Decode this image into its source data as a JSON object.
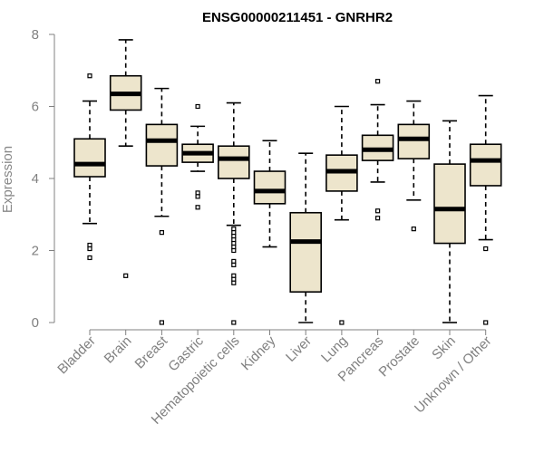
{
  "chart_data": {
    "type": "boxplot",
    "title": "ENSG00000211451 - GNRHR2",
    "ylabel": "Expression",
    "xlabel": "",
    "ylim": [
      0,
      8
    ],
    "yticks": [
      0,
      2,
      4,
      6,
      8
    ],
    "grid": false,
    "box_color": "#ede5cc",
    "categories": [
      "Bladder",
      "Brain",
      "Breast",
      "Gastric",
      "Hematopoietic cells",
      "Kidney",
      "Liver",
      "Lung",
      "Pancreas",
      "Prostate",
      "Skin",
      "Unknown / Other"
    ],
    "boxes": [
      {
        "category": "Bladder",
        "whisker_low": 2.75,
        "q1": 4.05,
        "median": 4.4,
        "q3": 5.1,
        "whisker_high": 6.15,
        "outliers": [
          6.85,
          2.15,
          2.05,
          1.8
        ]
      },
      {
        "category": "Brain",
        "whisker_low": 4.9,
        "q1": 5.9,
        "median": 6.35,
        "q3": 6.85,
        "whisker_high": 7.85,
        "outliers": [
          1.3
        ]
      },
      {
        "category": "Breast",
        "whisker_low": 2.95,
        "q1": 4.35,
        "median": 5.05,
        "q3": 5.5,
        "whisker_high": 6.5,
        "outliers": [
          2.5,
          0.0
        ]
      },
      {
        "category": "Gastric",
        "whisker_low": 4.2,
        "q1": 4.45,
        "median": 4.7,
        "q3": 4.95,
        "whisker_high": 5.45,
        "outliers": [
          6.0,
          3.6,
          3.5,
          3.2
        ]
      },
      {
        "category": "Hematopoietic cells",
        "whisker_low": 2.7,
        "q1": 4.0,
        "median": 4.55,
        "q3": 4.9,
        "whisker_high": 6.1,
        "outliers": [
          2.6,
          2.5,
          2.4,
          2.3,
          2.2,
          2.1,
          2.0,
          1.7,
          1.6,
          1.3,
          1.2,
          1.1,
          0.0
        ]
      },
      {
        "category": "Kidney",
        "whisker_low": 2.1,
        "q1": 3.3,
        "median": 3.65,
        "q3": 4.2,
        "whisker_high": 5.05,
        "outliers": []
      },
      {
        "category": "Liver",
        "whisker_low": 0.0,
        "q1": 0.85,
        "median": 2.25,
        "q3": 3.05,
        "whisker_high": 4.7,
        "outliers": []
      },
      {
        "category": "Lung",
        "whisker_low": 2.85,
        "q1": 3.65,
        "median": 4.2,
        "q3": 4.65,
        "whisker_high": 6.0,
        "outliers": [
          0.0
        ]
      },
      {
        "category": "Pancreas",
        "whisker_low": 3.9,
        "q1": 4.5,
        "median": 4.8,
        "q3": 5.2,
        "whisker_high": 6.05,
        "outliers": [
          6.7,
          3.1,
          2.9
        ]
      },
      {
        "category": "Prostate",
        "whisker_low": 3.4,
        "q1": 4.55,
        "median": 5.1,
        "q3": 5.5,
        "whisker_high": 6.15,
        "outliers": [
          2.6
        ]
      },
      {
        "category": "Skin",
        "whisker_low": 0.0,
        "q1": 2.2,
        "median": 3.15,
        "q3": 4.4,
        "whisker_high": 5.6,
        "outliers": []
      },
      {
        "category": "Unknown / Other",
        "whisker_low": 2.3,
        "q1": 3.8,
        "median": 4.5,
        "q3": 4.95,
        "whisker_high": 6.3,
        "outliers": [
          2.05,
          0.0
        ]
      }
    ]
  }
}
